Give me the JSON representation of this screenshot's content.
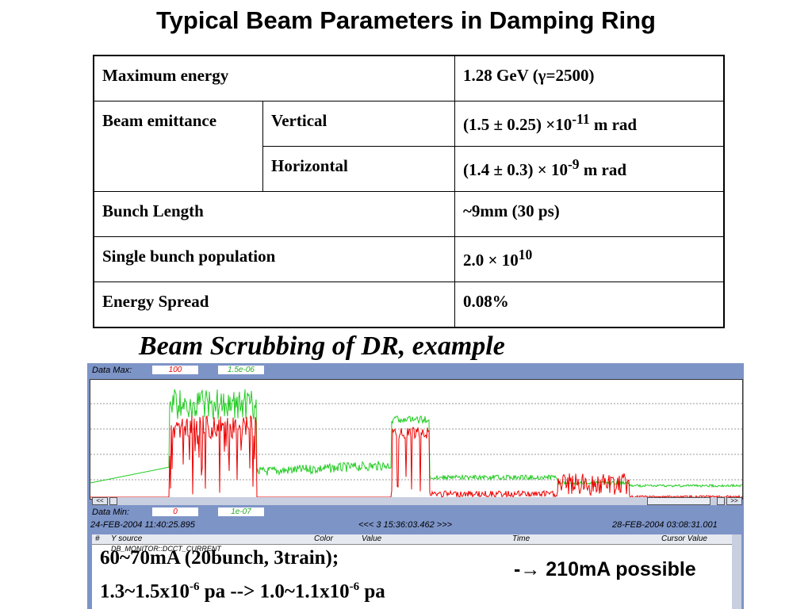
{
  "title": "Typical Beam Parameters in Damping Ring",
  "table": {
    "max_energy_label": "Maximum energy",
    "max_energy_value": "1.28 GeV  (γ=2500)",
    "emittance_label": "Beam emittance",
    "vertical_label": "Vertical",
    "vertical_value_pre": "(1.5 ± 0.25) ×10",
    "vertical_exp": "-11",
    "vertical_unit": " m rad",
    "horizontal_label": "Horizontal",
    "horizontal_value_pre": "(1.4 ± 0.3) × 10",
    "horizontal_exp": "-9",
    "horizontal_unit": " m rad",
    "bunch_length_label": "Bunch Length",
    "bunch_length_value": "~9mm (30 ps)",
    "single_bunch_label": "Single bunch population",
    "single_bunch_pre": "2.0 × 10",
    "single_bunch_exp": "10",
    "energy_spread_label": "Energy Spread",
    "energy_spread_value": "0.08%"
  },
  "subtitle": "Beam Scrubbing of DR,  example",
  "monitor": {
    "data_max_label": "Data Max:",
    "data_max_val1": "100",
    "data_max_val2": "1.5e-06",
    "data_min_label": "Data Min:",
    "data_min_val1": "0",
    "data_min_val2": "1e-07",
    "time_start": "24-FEB-2004 11:40:25.895",
    "time_cursor": "<<< 3 15:36:03.462 >>>",
    "time_end": "28-FEB-2004 03:08:31.001",
    "scroll_left": "<<",
    "scroll_right": ">>",
    "col_y_source": "Y source",
    "col_color": "Color",
    "col_value": "Value",
    "col_time": "Time",
    "col_cursor_value": "Cursor Value",
    "row_source": "DB_MONITOR::DCCT_CURRENT",
    "colors": {
      "current": "#ee0000",
      "pressure": "#22cc22",
      "field_bg": "#ffffff",
      "field_val_red": "#ee0000",
      "field_val_green": "#22aa22"
    }
  },
  "overlay": {
    "line1": "60~70mA (20bunch, 3train);",
    "line2_a": "1.3~1.5x10",
    "line2_a_exp": "-6",
    "line2_b": " pa --> 1.0~1.1x10",
    "line2_b_exp": "-6",
    "line2_c": " pa",
    "possible_prefix": "-",
    "possible_arrow": "→",
    "possible_text": " 210mA possible"
  }
}
